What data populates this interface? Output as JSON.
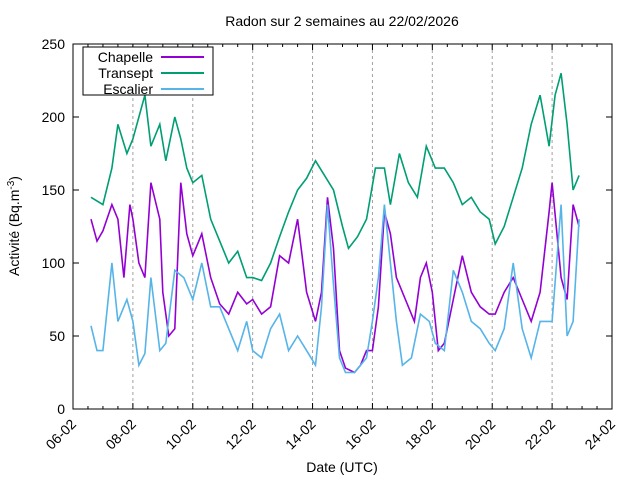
{
  "chart_data": {
    "type": "line",
    "title": "Radon sur 2 semaines au 22/02/2026",
    "xlabel": "Date (UTC)",
    "ylabel": "Activité (Bq.m",
    "ylabel_sup": "-3",
    "ylabel_end": ")",
    "x_unit": "day of February 2026",
    "xlim": [
      6,
      24
    ],
    "ylim": [
      0,
      250
    ],
    "x_ticks": [
      6,
      8,
      10,
      12,
      14,
      16,
      18,
      20,
      22,
      24
    ],
    "x_tick_labels": [
      "06-02",
      "08-02",
      "10-02",
      "12-02",
      "14-02",
      "16-02",
      "18-02",
      "20-02",
      "22-02",
      "24-02"
    ],
    "y_ticks": [
      0,
      50,
      100,
      150,
      200,
      250
    ],
    "y_tick_labels": [
      "0",
      "50",
      "100",
      "150",
      "200",
      "250"
    ],
    "grid": "vertical dashed at major x ticks",
    "legend_position": "top-left",
    "series": [
      {
        "name": "Chapelle",
        "color": "#9400d3",
        "x": [
          6.6,
          6.8,
          7.0,
          7.3,
          7.5,
          7.7,
          7.9,
          8.0,
          8.2,
          8.4,
          8.6,
          8.9,
          9.0,
          9.2,
          9.4,
          9.6,
          9.8,
          10.0,
          10.3,
          10.6,
          10.9,
          11.2,
          11.5,
          11.8,
          12.0,
          12.3,
          12.6,
          12.9,
          13.2,
          13.5,
          13.8,
          14.1,
          14.3,
          14.5,
          14.7,
          14.9,
          15.1,
          15.4,
          15.6,
          15.8,
          16.0,
          16.2,
          16.4,
          16.6,
          16.8,
          17.1,
          17.4,
          17.6,
          17.8,
          18.0,
          18.2,
          18.4,
          18.7,
          19.0,
          19.3,
          19.6,
          19.9,
          20.1,
          20.4,
          20.7,
          21.0,
          21.3,
          21.6,
          21.9,
          22.0,
          22.3,
          22.5,
          22.7,
          22.9
        ],
        "y": [
          130,
          115,
          122,
          140,
          130,
          90,
          140,
          130,
          100,
          90,
          155,
          130,
          80,
          50,
          55,
          155,
          120,
          105,
          120,
          90,
          72,
          65,
          80,
          72,
          75,
          65,
          70,
          105,
          100,
          130,
          80,
          60,
          80,
          145,
          110,
          40,
          28,
          25,
          30,
          40,
          40,
          70,
          135,
          120,
          90,
          75,
          60,
          90,
          100,
          80,
          40,
          45,
          75,
          105,
          80,
          70,
          65,
          65,
          80,
          90,
          75,
          60,
          80,
          135,
          155,
          90,
          75,
          140,
          125
        ]
      },
      {
        "name": "Transept",
        "color": "#009e73",
        "x": [
          6.6,
          7.0,
          7.3,
          7.5,
          7.8,
          8.0,
          8.2,
          8.4,
          8.6,
          8.9,
          9.1,
          9.4,
          9.6,
          9.8,
          10.0,
          10.3,
          10.6,
          10.9,
          11.2,
          11.5,
          11.8,
          12.0,
          12.3,
          12.6,
          12.9,
          13.2,
          13.5,
          13.8,
          14.1,
          14.4,
          14.7,
          15.0,
          15.2,
          15.5,
          15.8,
          16.1,
          16.4,
          16.6,
          16.9,
          17.2,
          17.5,
          17.8,
          18.1,
          18.4,
          18.7,
          19.0,
          19.3,
          19.6,
          19.9,
          20.1,
          20.4,
          20.7,
          21.0,
          21.3,
          21.6,
          21.9,
          22.1,
          22.3,
          22.5,
          22.7,
          22.9
        ],
        "y": [
          145,
          140,
          165,
          195,
          175,
          185,
          200,
          215,
          180,
          195,
          170,
          200,
          185,
          165,
          155,
          160,
          130,
          115,
          100,
          108,
          90,
          90,
          88,
          100,
          118,
          135,
          150,
          158,
          170,
          160,
          150,
          125,
          110,
          118,
          130,
          165,
          165,
          140,
          175,
          155,
          145,
          180,
          165,
          165,
          155,
          140,
          145,
          135,
          130,
          113,
          125,
          145,
          165,
          195,
          215,
          180,
          215,
          230,
          195,
          150,
          160
        ]
      },
      {
        "name": "Escalier",
        "color": "#56b4e9",
        "x": [
          6.6,
          6.8,
          7.0,
          7.3,
          7.5,
          7.8,
          8.0,
          8.2,
          8.4,
          8.6,
          8.9,
          9.1,
          9.4,
          9.7,
          10.0,
          10.3,
          10.6,
          10.9,
          11.2,
          11.5,
          11.8,
          12.0,
          12.3,
          12.6,
          12.9,
          13.2,
          13.5,
          13.8,
          14.1,
          14.3,
          14.5,
          14.7,
          14.9,
          15.1,
          15.4,
          15.6,
          15.8,
          16.0,
          16.2,
          16.4,
          16.6,
          16.8,
          17.0,
          17.3,
          17.6,
          17.9,
          18.1,
          18.4,
          18.7,
          19.0,
          19.3,
          19.6,
          19.9,
          20.1,
          20.4,
          20.7,
          21.0,
          21.3,
          21.6,
          21.9,
          22.0,
          22.3,
          22.5,
          22.7,
          22.9
        ],
        "y": [
          57,
          40,
          40,
          100,
          60,
          75,
          60,
          30,
          38,
          90,
          40,
          45,
          95,
          90,
          75,
          100,
          70,
          70,
          55,
          40,
          60,
          40,
          35,
          55,
          65,
          40,
          50,
          40,
          30,
          70,
          140,
          85,
          35,
          25,
          25,
          30,
          35,
          60,
          90,
          140,
          100,
          60,
          30,
          35,
          65,
          60,
          45,
          40,
          95,
          80,
          60,
          55,
          45,
          40,
          55,
          100,
          55,
          35,
          60,
          60,
          60,
          140,
          50,
          60,
          130
        ]
      }
    ]
  }
}
